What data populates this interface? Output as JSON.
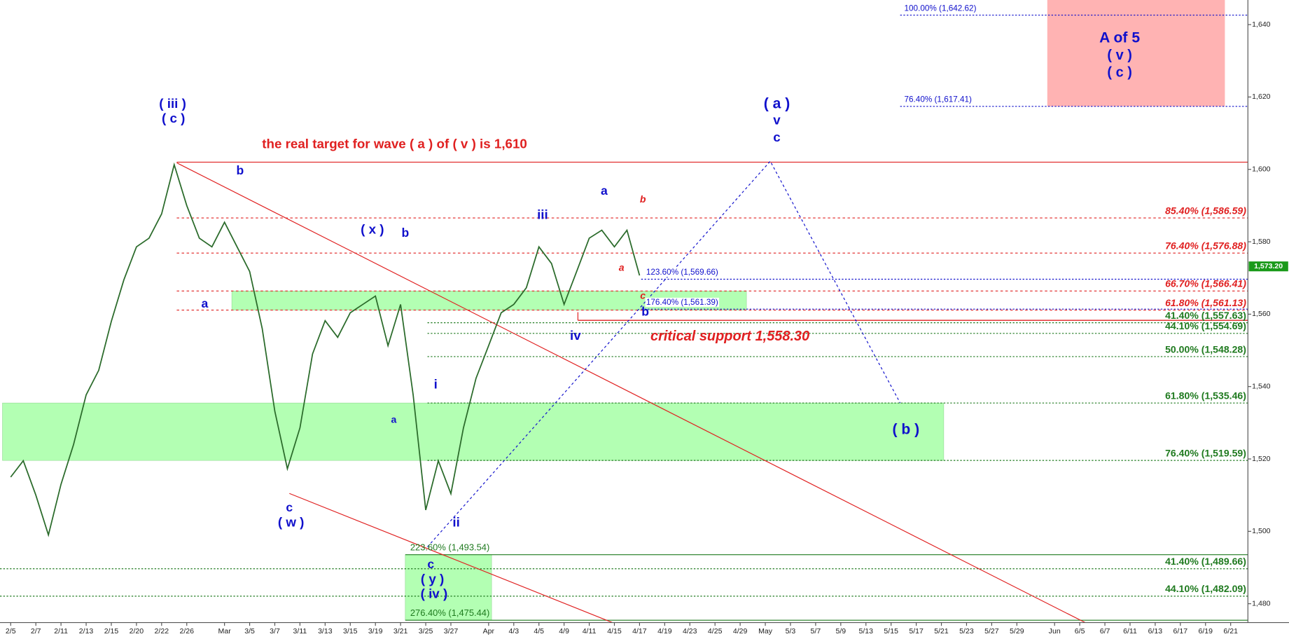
{
  "chart_data": {
    "type": "line",
    "x": [
      0,
      1,
      2,
      3,
      4,
      5,
      6,
      7,
      8,
      9,
      10,
      11,
      12,
      13,
      14,
      15,
      16,
      17,
      18,
      19,
      20,
      21,
      22,
      23,
      24,
      25,
      26,
      27,
      28,
      29,
      30,
      31,
      32,
      33,
      34,
      35,
      36,
      37,
      38,
      39,
      40,
      41,
      42,
      43,
      44,
      45,
      46,
      47,
      48,
      49,
      50
    ],
    "values": [
      1515,
      1519.5,
      1510,
      1499,
      1513,
      1524,
      1537.7,
      1544.5,
      1558,
      1569.5,
      1578.6,
      1581,
      1587.7,
      1601.3,
      1590,
      1581,
      1578.6,
      1585.4,
      1578.6,
      1571.8,
      1556,
      1533.2,
      1517.3,
      1528.6,
      1549,
      1558.2,
      1553.6,
      1560.4,
      1562.7,
      1565,
      1551.3,
      1562.7,
      1537.7,
      1505.9,
      1519.5,
      1510.4,
      1528.6,
      1542.3,
      1551.3,
      1560.4,
      1562.7,
      1567.3,
      1578.6,
      1574,
      1562.7,
      1571.8,
      1581,
      1583.2,
      1578.6,
      1583.2,
      1570.7
    ],
    "color": "#2b6b2b",
    "xlim": [
      -0.85,
      98.37
    ],
    "ylim": [
      1474.8,
      1646.8
    ],
    "xticks": [
      {
        "value": 0,
        "label": "2/5"
      },
      {
        "value": 2,
        "label": "2/7"
      },
      {
        "value": 4,
        "label": "2/11"
      },
      {
        "value": 6,
        "label": "2/13"
      },
      {
        "value": 8,
        "label": "2/15"
      },
      {
        "value": 10,
        "label": "2/20"
      },
      {
        "value": 12,
        "label": "2/22"
      },
      {
        "value": 14,
        "label": "2/26"
      },
      {
        "value": 17,
        "label": "Mar"
      },
      {
        "value": 19,
        "label": "3/5"
      },
      {
        "value": 21,
        "label": "3/7"
      },
      {
        "value": 23,
        "label": "3/11"
      },
      {
        "value": 25,
        "label": "3/13"
      },
      {
        "value": 27,
        "label": "3/15"
      },
      {
        "value": 29,
        "label": "3/19"
      },
      {
        "value": 31,
        "label": "3/21"
      },
      {
        "value": 33,
        "label": "3/25"
      },
      {
        "value": 35,
        "label": "3/27"
      },
      {
        "value": 38,
        "label": "Apr"
      },
      {
        "value": 40,
        "label": "4/3"
      },
      {
        "value": 42,
        "label": "4/5"
      },
      {
        "value": 44,
        "label": "4/9"
      },
      {
        "value": 46,
        "label": "4/11"
      },
      {
        "value": 48,
        "label": "4/15"
      },
      {
        "value": 50,
        "label": "4/17"
      },
      {
        "value": 52,
        "label": "4/19"
      },
      {
        "value": 54,
        "label": "4/23"
      },
      {
        "value": 56,
        "label": "4/25"
      },
      {
        "value": 58,
        "label": "4/29"
      },
      {
        "value": 60,
        "label": "May"
      },
      {
        "value": 62,
        "label": "5/3"
      },
      {
        "value": 64,
        "label": "5/7"
      },
      {
        "value": 66,
        "label": "5/9"
      },
      {
        "value": 68,
        "label": "5/13"
      },
      {
        "value": 70,
        "label": "5/15"
      },
      {
        "value": 72,
        "label": "5/17"
      },
      {
        "value": 74,
        "label": "5/21"
      },
      {
        "value": 76,
        "label": "5/23"
      },
      {
        "value": 78,
        "label": "5/27"
      },
      {
        "value": 80,
        "label": "5/29"
      },
      {
        "value": 83,
        "label": "Jun"
      },
      {
        "value": 85,
        "label": "6/5"
      },
      {
        "value": 87,
        "label": "6/7"
      },
      {
        "value": 89,
        "label": "6/11"
      },
      {
        "value": 91,
        "label": "6/13"
      },
      {
        "value": 93,
        "label": "6/17"
      },
      {
        "value": 95,
        "label": "6/19"
      },
      {
        "value": 97,
        "label": "6/21"
      }
    ],
    "yticks": [
      {
        "value": 1480,
        "label": "1,480"
      },
      {
        "value": 1500,
        "label": "1,500"
      },
      {
        "value": 1520,
        "label": "1,520"
      },
      {
        "value": 1540,
        "label": "1,540"
      },
      {
        "value": 1560,
        "label": "1,560"
      },
      {
        "value": 1580,
        "label": "1,580"
      },
      {
        "value": 1600,
        "label": "1,600"
      },
      {
        "value": 1620,
        "label": "1,620"
      },
      {
        "value": 1640,
        "label": "1,640"
      }
    ],
    "current_price": {
      "value": 1573.2,
      "label": "1,573.20",
      "color": "#1a9a1a"
    },
    "zones": [
      {
        "low": 1561.13,
        "high": 1566.41,
        "color": "#b3ffb3"
      },
      {
        "low": 1519.59,
        "high": 1535.46,
        "color": "#b3ffb3"
      },
      {
        "low": 1475.44,
        "high": 1493.54,
        "color": "#b3ffb3"
      },
      {
        "low": 1617.41,
        "high": 1646.8,
        "color": "#ffb3b3"
      }
    ],
    "levels": [
      {
        "value": 1602,
        "color": "#e02020"
      }
    ],
    "support": {
      "value": 1558.3,
      "label": "critical support 1,558.30",
      "color": "#e02020"
    },
    "fib_groups": [
      {
        "color": "#1010cc",
        "levels": [
          {
            "value": 1642.62,
            "label": "100.00% (1,642.62)"
          },
          {
            "value": 1617.41,
            "label": "76.40% (1,617.41)"
          }
        ]
      },
      {
        "color": "#1010cc",
        "levels": [
          {
            "value": 1569.66,
            "label": "123.60% (1,569.66)"
          },
          {
            "value": 1561.39,
            "label": "176.40% (1,561.39)"
          }
        ]
      },
      {
        "color": "#e02020",
        "levels": [
          {
            "value": 1586.59,
            "label": "85.40% (1,586.59)"
          },
          {
            "value": 1576.88,
            "label": "76.40% (1,576.88)"
          },
          {
            "value": 1566.41,
            "label": "66.70% (1,566.41)"
          },
          {
            "value": 1561.13,
            "label": "61.80% (1,561.13)"
          }
        ]
      },
      {
        "color": "#1f7a1f",
        "levels": [
          {
            "value": 1557.63,
            "label": "41.40% (1,557.63)"
          },
          {
            "value": 1554.69,
            "label": "44.10% (1,554.69)"
          },
          {
            "value": 1548.28,
            "label": "50.00% (1,548.28)"
          },
          {
            "value": 1535.46,
            "label": "61.80% (1,535.46)"
          },
          {
            "value": 1519.59,
            "label": "76.40% (1,519.59)"
          }
        ]
      },
      {
        "color": "#1f7a1f",
        "levels": [
          {
            "value": 1489.66,
            "label": "41.40% (1,489.66)"
          },
          {
            "value": 1482.09,
            "label": "44.10% (1,482.09)"
          }
        ]
      },
      {
        "color": "#1f7a1f",
        "levels": [
          {
            "value": 1493.54,
            "label": "223.60% (1,493.54)"
          },
          {
            "value": 1475.44,
            "label": "276.40% (1,475.44)"
          }
        ]
      }
    ],
    "annotations": [
      {
        "text": "( iii )",
        "color": "#1010cc"
      },
      {
        "text": "( c )",
        "color": "#1010cc"
      },
      {
        "text": "the real target for wave ( a ) of ( v ) is 1,610",
        "color": "#e02020"
      },
      {
        "text": "b",
        "color": "#1010cc"
      },
      {
        "text": "( x )",
        "color": "#1010cc"
      },
      {
        "text": "b",
        "color": "#1010cc"
      },
      {
        "text": "a",
        "color": "#1010cc"
      },
      {
        "text": "a",
        "color": "#1010cc"
      },
      {
        "text": "c",
        "color": "#1010cc"
      },
      {
        "text": "( w )",
        "color": "#1010cc"
      },
      {
        "text": "i",
        "color": "#1010cc"
      },
      {
        "text": "ii",
        "color": "#1010cc"
      },
      {
        "text": "iii",
        "color": "#1010cc"
      },
      {
        "text": "iv",
        "color": "#1010cc"
      },
      {
        "text": "a",
        "color": "#1010cc"
      },
      {
        "text": "b",
        "color": "#e02020"
      },
      {
        "text": "a",
        "color": "#e02020"
      },
      {
        "text": "c",
        "color": "#e02020"
      },
      {
        "text": "b",
        "color": "#1010cc"
      },
      {
        "text": "( a )",
        "color": "#1010cc"
      },
      {
        "text": "v",
        "color": "#1010cc"
      },
      {
        "text": "c",
        "color": "#1010cc"
      },
      {
        "text": "( b )",
        "color": "#1010cc"
      },
      {
        "text": "A of 5",
        "color": "#1010cc"
      },
      {
        "text": "( v )",
        "color": "#1010cc"
      },
      {
        "text": "( c )",
        "color": "#1010cc"
      },
      {
        "text": "c",
        "color": "#1010cc"
      },
      {
        "text": "( y )",
        "color": "#1010cc"
      },
      {
        "text": "( iv )",
        "color": "#1010cc"
      }
    ]
  }
}
